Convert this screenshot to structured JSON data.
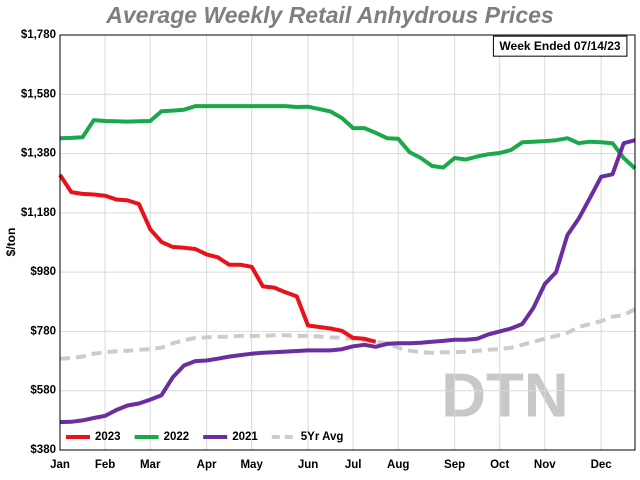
{
  "chart_data": {
    "type": "line",
    "title": "Average Weekly Retail Anhydrous Prices",
    "annotation": "Week Ended 07/14/23",
    "ylabel": "$/ton",
    "watermark": "DTN",
    "categories": [
      "Jan",
      null,
      null,
      null,
      "Feb",
      null,
      null,
      null,
      "Mar",
      null,
      null,
      null,
      null,
      "Apr",
      null,
      null,
      null,
      "May",
      null,
      null,
      null,
      null,
      "Jun",
      null,
      null,
      null,
      "Jul",
      null,
      null,
      null,
      "Aug",
      null,
      null,
      null,
      null,
      "Sep",
      null,
      null,
      null,
      "Oct",
      null,
      null,
      null,
      "Nov",
      null,
      null,
      null,
      null,
      "Dec",
      null,
      null,
      null
    ],
    "ylim": [
      380,
      1780
    ],
    "yticks": [
      {
        "value": 380,
        "label": "$380"
      },
      {
        "value": 580,
        "label": "$580"
      },
      {
        "value": 780,
        "label": "$780"
      },
      {
        "value": 980,
        "label": "$980"
      },
      {
        "value": 1180,
        "label": "$1,180"
      },
      {
        "value": 1380,
        "label": "$1,380"
      },
      {
        "value": 1580,
        "label": "$1,580"
      },
      {
        "value": 1780,
        "label": "$1,780"
      }
    ],
    "grid": true,
    "legend": "lower left",
    "series": [
      {
        "name": "2023",
        "color": "#e8121a",
        "dash": false,
        "values": [
          1308,
          1250,
          1244,
          1242,
          1238,
          1225,
          1222,
          1210,
          1125,
          1082,
          1065,
          1062,
          1058,
          1040,
          1030,
          1005,
          1005,
          998,
          932,
          928,
          912,
          898,
          800,
          795,
          790,
          782,
          758,
          755,
          745,
          null,
          null,
          null,
          null,
          null,
          null,
          null,
          null,
          null,
          null,
          null,
          null,
          null,
          null,
          null,
          null,
          null,
          null,
          null,
          null,
          null,
          null,
          null
        ]
      },
      {
        "name": "2022",
        "color": "#1aa84a",
        "dash": false,
        "values": [
          1432,
          1433,
          1435,
          1493,
          1490,
          1489,
          1488,
          1489,
          1490,
          1523,
          1525,
          1528,
          1540,
          1540,
          1540,
          1540,
          1540,
          1540,
          1540,
          1540,
          1540,
          1537,
          1538,
          1530,
          1522,
          1500,
          1466,
          1466,
          1450,
          1432,
          1430,
          1385,
          1365,
          1338,
          1333,
          1365,
          1360,
          1370,
          1378,
          1382,
          1392,
          1418,
          1420,
          1422,
          1425,
          1432,
          1415,
          1420,
          1418,
          1415,
          1365,
          1330
        ]
      },
      {
        "name": "2021",
        "color": "#6a2ea0",
        "dash": false,
        "values": [
          474,
          475,
          480,
          488,
          495,
          515,
          530,
          537,
          550,
          565,
          625,
          665,
          680,
          682,
          688,
          695,
          700,
          705,
          708,
          710,
          712,
          714,
          716,
          716,
          716,
          720,
          730,
          735,
          728,
          738,
          740,
          740,
          742,
          745,
          748,
          752,
          752,
          755,
          770,
          780,
          790,
          805,
          860,
          940,
          980,
          1105,
          1160,
          1230,
          1302,
          1310,
          1415,
          1425
        ]
      },
      {
        "name": "5Yr Avg",
        "color": "#cccccc",
        "dash": true,
        "values": [
          688,
          690,
          695,
          705,
          710,
          713,
          715,
          718,
          720,
          725,
          740,
          750,
          758,
          760,
          762,
          762,
          765,
          765,
          765,
          767,
          767,
          765,
          765,
          763,
          760,
          758,
          755,
          750,
          745,
          740,
          725,
          715,
          710,
          708,
          710,
          710,
          712,
          715,
          718,
          720,
          725,
          735,
          745,
          755,
          765,
          775,
          795,
          805,
          815,
          830,
          835,
          855
        ]
      }
    ]
  }
}
